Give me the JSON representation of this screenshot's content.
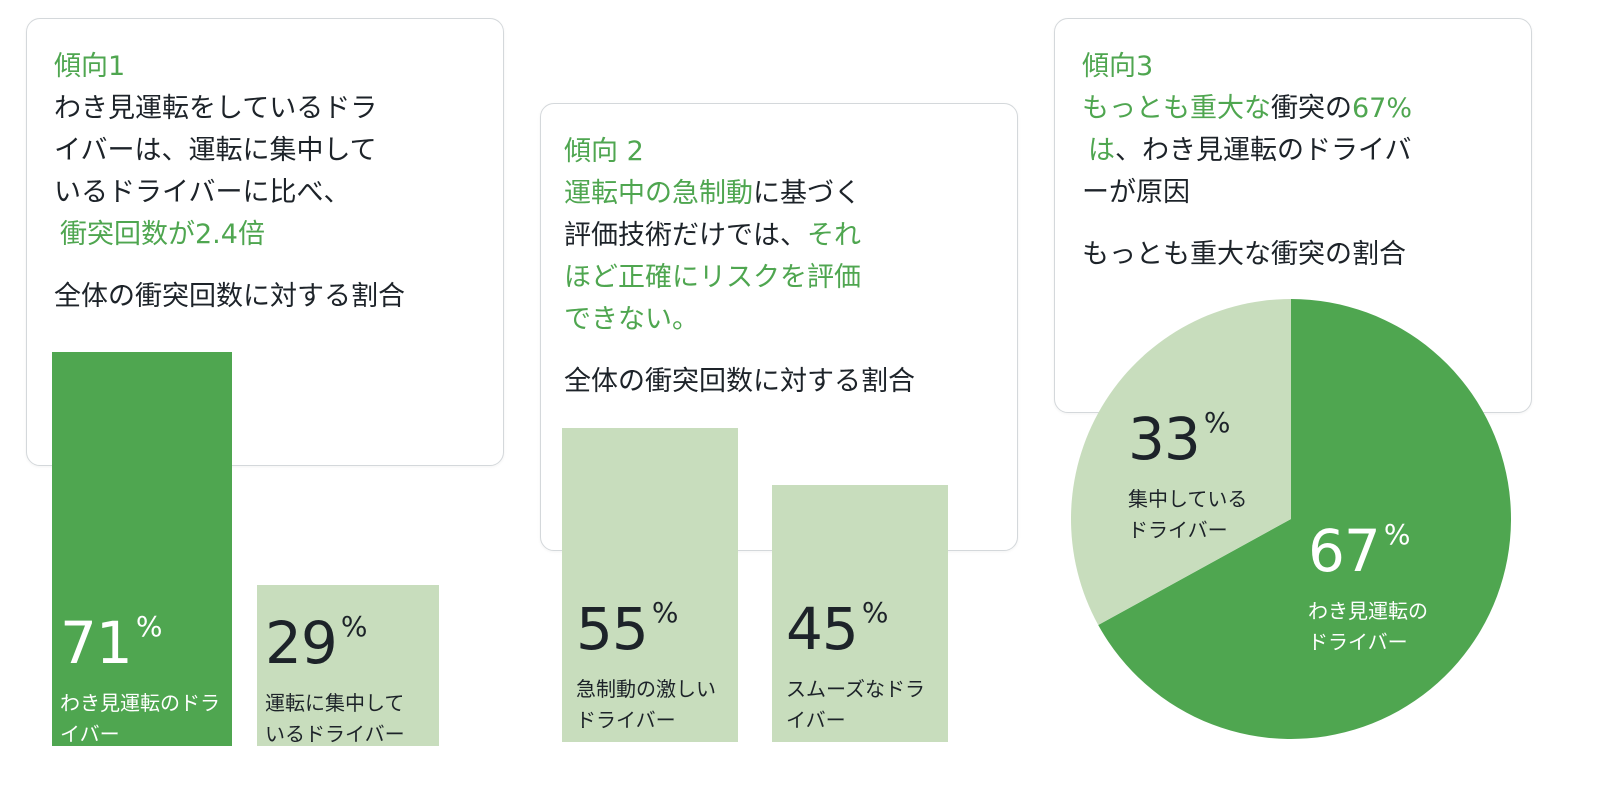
{
  "colors": {
    "accent_green": "#4fa650",
    "light_green": "#c8ddbd",
    "text_dark": "#1d2329",
    "card_border": "#d4d8db"
  },
  "trend1": {
    "tag": "傾向1",
    "line1": "わき見運転をしているドラ",
    "line2": "イバーは、運転に集中して",
    "line3": "いるドライバーに比べ、",
    "line4": "衝突回数が2.4倍",
    "subtitle": "全体の衝突回数に対する割合"
  },
  "trend2": {
    "tag": "傾向 2",
    "line1_green": "運転中の急制動",
    "line1_dark": "に基づく",
    "line2_dark": "評価技術だけでは、",
    "line2_green": "それ",
    "line3": "ほど正確にリスクを評価",
    "line4": "できない。",
    "subtitle": "全体の衝突回数に対する割合"
  },
  "trend3": {
    "tag": "傾向3",
    "line1_green_a": "もっとも重大な",
    "line1_dark": "衝突の",
    "line1_green_b": "67%",
    "line2_green": "は",
    "line2_dark": "、わき見運転のドライバ",
    "line3": "ーが原因",
    "subtitle": "もっとも重大な衝突の割合"
  },
  "chart_data": [
    {
      "type": "bar",
      "categories": [
        "わき見運転のドライバー",
        "運転に集中しているドライバー"
      ],
      "values": [
        71,
        29
      ],
      "unit": "%",
      "labels": [
        {
          "num": "71",
          "sign": "%",
          "cap1": "わき見運転のドラ",
          "cap2": "イバー"
        },
        {
          "num": "29",
          "sign": "%",
          "cap1": "運転に集中して",
          "cap2": "いるドライバー"
        }
      ],
      "ylim": [
        0,
        100
      ]
    },
    {
      "type": "bar",
      "categories": [
        "急制動の激しいドライバー",
        "スムーズなドライバー"
      ],
      "values": [
        55,
        45
      ],
      "unit": "%",
      "labels": [
        {
          "num": "55",
          "sign": "%",
          "cap1": "急制動の激しい",
          "cap2": "ドライバー"
        },
        {
          "num": "45",
          "sign": "%",
          "cap1": "スムーズなドラ",
          "cap2": "イバー"
        }
      ],
      "ylim": [
        0,
        100
      ]
    },
    {
      "type": "pie",
      "categories": [
        "わき見運転のドライバー",
        "集中しているドライバー"
      ],
      "values": [
        67,
        33
      ],
      "unit": "%",
      "labels": [
        {
          "num": "67",
          "sign": "%",
          "cap1": "わき見運転の",
          "cap2": "ドライバー"
        },
        {
          "num": "33",
          "sign": "%",
          "cap1": "集中している",
          "cap2": "ドライバー"
        }
      ]
    }
  ]
}
